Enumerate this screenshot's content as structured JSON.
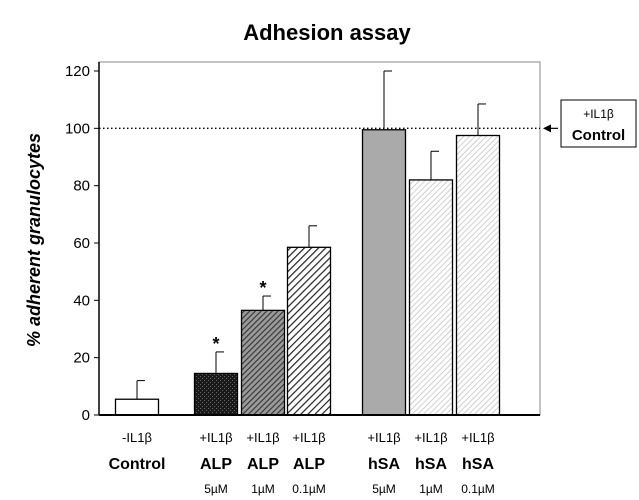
{
  "chart_data": {
    "type": "bar",
    "title": "Adhesion assay",
    "ylabel": "% adherent granulocytes",
    "xlabel": "",
    "ylim": [
      0,
      120
    ],
    "yticks": [
      0,
      20,
      40,
      60,
      80,
      100,
      120
    ],
    "grid": false,
    "categories": [
      {
        "line1": "-IL1β",
        "line2": "Control",
        "line3": ""
      },
      {
        "line1": "+IL1β",
        "line2": "ALP",
        "line3": "5µM"
      },
      {
        "line1": "+IL1β",
        "line2": "ALP",
        "line3": "1µM"
      },
      {
        "line1": "+IL1β",
        "line2": "ALP",
        "line3": "0.1µM"
      },
      {
        "line1": "+IL1β",
        "line2": "hSA",
        "line3": "5µM"
      },
      {
        "line1": "+IL1β",
        "line2": "hSA",
        "line3": "1µM"
      },
      {
        "line1": "+IL1β",
        "line2": "hSA",
        "line3": "0.1µM"
      }
    ],
    "values": [
      5.5,
      14.5,
      36.5,
      58.5,
      99.5,
      82.0,
      97.5
    ],
    "errors": [
      6.5,
      7.5,
      5.0,
      7.5,
      20.5,
      10.0,
      11.0
    ],
    "significant": [
      false,
      true,
      true,
      false,
      false,
      false,
      false
    ],
    "significance_marker": "*",
    "fills": [
      "#ffffff",
      "#111111",
      "#555555",
      "#ffffff",
      "#aaaaaa",
      "#e2e2e2",
      "#ffffff"
    ],
    "hatch": [
      "none",
      "dense-dark",
      "diagonal-dark",
      "diagonal-bold",
      "none",
      "diagonal-light",
      "diagonal-light"
    ],
    "reference_line": {
      "value": 100,
      "style": "dotted",
      "label_line1": "+IL1β",
      "label_line2": "Control"
    }
  }
}
